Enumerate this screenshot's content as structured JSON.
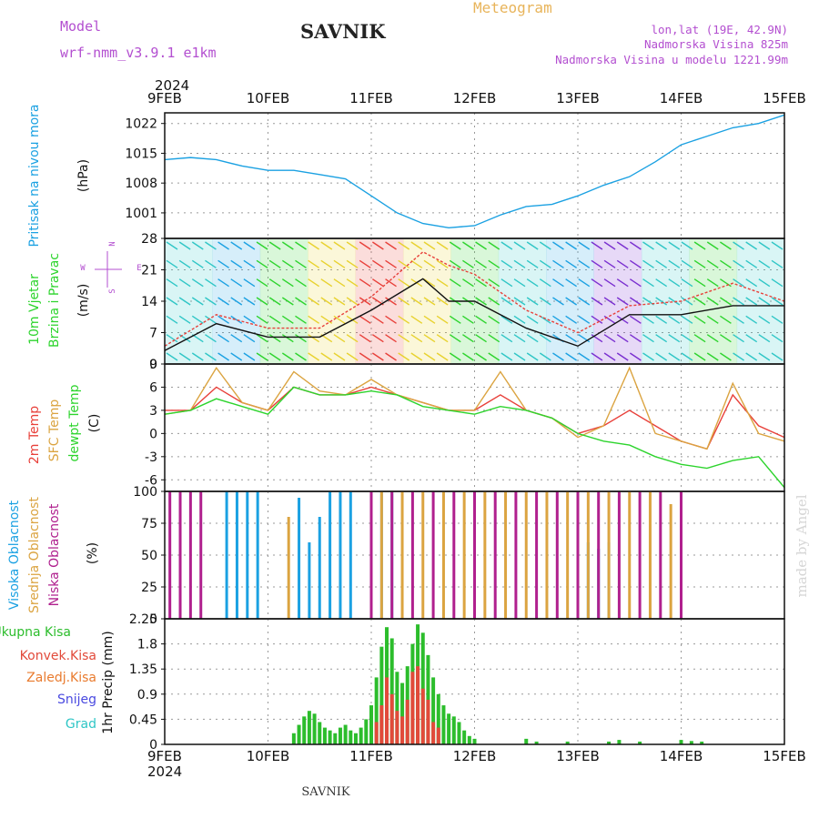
{
  "header": {
    "model_label": "Model",
    "model_name": "wrf-nmm_v3.9.1 e1km",
    "station": "SAVNIK",
    "product": "Meteogram",
    "lonlat": "lon,lat (19E, 42.9N)",
    "elevation": "Nadmorska Visina 825m",
    "model_elevation": "Nadmorska Visina u modelu 1221.99m"
  },
  "footer": {
    "station": "SAVNIK",
    "credit": "made by Angel"
  },
  "colors": {
    "pressure": "#1ba1e2",
    "temp2m": "#e8403a",
    "sfc": "#dba441",
    "dewpt": "#2dd42d",
    "high_cloud": "#1ba1e2",
    "mid_cloud": "#dba441",
    "low_cloud": "#b0208e",
    "rain_total": "#2cbd2c",
    "rain_conv": "#e24a3a",
    "frz": "#e97b2e",
    "snow": "#4a4ae0",
    "graupel": "#2fc6c6",
    "title_purple": "#b34fd0"
  },
  "time_axis": {
    "year": "2024",
    "ticks": [
      "9FEB",
      "10FEB",
      "11FEB",
      "12FEB",
      "13FEB",
      "14FEB",
      "15FEB"
    ]
  },
  "chart_data": [
    {
      "type": "line",
      "id": "pressure",
      "ylabel_name": "Pritisak na nivou mora",
      "ylabel_unit": "(hPa)",
      "ylim": [
        995,
        1024.5
      ],
      "yticks": [
        1001,
        1008,
        1015,
        1022
      ],
      "grid": true,
      "series": [
        {
          "x": [
            0,
            0.25,
            0.5,
            0.75,
            1,
            1.25,
            1.5,
            1.75,
            2,
            2.25,
            2.5,
            2.75,
            3,
            3.25,
            3.5,
            3.75,
            4,
            4.25,
            4.5,
            4.75,
            5,
            5.25,
            5.5,
            5.75,
            6
          ],
          "y": [
            1013.5,
            1014,
            1013.5,
            1012,
            1011,
            1011,
            1010,
            1009,
            1005,
            1001,
            998.5,
            997.5,
            998,
            1000.5,
            1002.5,
            1003,
            1005,
            1007.5,
            1009.5,
            1013,
            1017,
            1019,
            1021,
            1022,
            1024
          ]
        }
      ]
    },
    {
      "type": "line",
      "id": "wind",
      "ylabel_name": "10m Vjetar",
      "ylabel_name2": "Brzina i Pravac",
      "ylabel_unit": "(m/s)",
      "legend_compass": [
        "N",
        "W",
        "E",
        "S"
      ],
      "ylim": [
        0,
        28
      ],
      "yticks": [
        0,
        7,
        14,
        21,
        28
      ],
      "grid": true,
      "series": [
        {
          "x": [
            0,
            0.5,
            1,
            1.5,
            2,
            2.5,
            2.75,
            3,
            3.5,
            4,
            4.5,
            5,
            5.5,
            6
          ],
          "y": [
            3,
            9,
            6,
            6,
            12,
            19,
            14,
            14,
            8,
            4,
            11,
            11,
            13,
            13
          ]
        },
        {
          "x": [
            0,
            0.5,
            1,
            1.5,
            2,
            2.5,
            2.75,
            3,
            3.5,
            4,
            4.5,
            5,
            5.5,
            6
          ],
          "y": [
            4,
            11,
            8,
            8,
            15,
            25,
            22,
            20,
            12,
            7,
            13,
            14,
            18,
            14
          ]
        }
      ]
    },
    {
      "type": "line",
      "id": "temperature",
      "ylabel_names": [
        "2m Temp",
        "SFC Temp",
        "dewpt Temp"
      ],
      "ylabel_unit": "(C)",
      "ylim": [
        -7.5,
        9
      ],
      "yticks": [
        -6,
        -3,
        0,
        3,
        6,
        9
      ],
      "grid": true,
      "series": [
        {
          "name": "2m Temp",
          "x": [
            0,
            0.25,
            0.5,
            0.75,
            1,
            1.25,
            1.5,
            1.75,
            2,
            2.25,
            2.5,
            2.75,
            3,
            3.25,
            3.5,
            3.75,
            4,
            4.25,
            4.5,
            4.75,
            5,
            5.25,
            5.5,
            5.75,
            6
          ],
          "y": [
            3,
            3,
            6,
            4,
            3,
            6,
            5,
            5,
            6,
            5,
            4,
            3,
            3,
            5,
            3,
            2,
            0,
            1,
            3,
            1,
            -1,
            -2,
            5,
            1,
            -0.5
          ]
        },
        {
          "name": "SFC Temp",
          "x": [
            0,
            0.25,
            0.5,
            0.75,
            1,
            1.25,
            1.5,
            1.75,
            2,
            2.25,
            2.5,
            2.75,
            3,
            3.25,
            3.5,
            3.75,
            4,
            4.25,
            4.5,
            4.75,
            5,
            5.25,
            5.5,
            5.75,
            6
          ],
          "y": [
            2.5,
            3,
            8.5,
            4,
            3,
            8,
            5.5,
            5,
            7,
            5,
            4,
            3,
            3,
            8,
            3,
            2,
            -0.5,
            1,
            8.5,
            0,
            -1,
            -2,
            6.5,
            0,
            -1
          ]
        },
        {
          "name": "dewpt Temp",
          "x": [
            0,
            0.25,
            0.5,
            0.75,
            1,
            1.25,
            1.5,
            1.75,
            2,
            2.25,
            2.5,
            2.75,
            3,
            3.25,
            3.5,
            3.75,
            4,
            4.25,
            4.5,
            4.75,
            5,
            5.25,
            5.5,
            5.75,
            6
          ],
          "y": [
            2.5,
            3,
            4.5,
            3.5,
            2.5,
            6,
            5,
            5,
            5.5,
            5,
            3.5,
            3,
            2.5,
            3.5,
            3,
            2,
            0,
            -1,
            -1.5,
            -3,
            -4,
            -4.5,
            -3.5,
            -3,
            -7
          ]
        }
      ]
    },
    {
      "type": "bar",
      "id": "cloud",
      "ylabel_names": [
        "Visoka Oblacnost",
        "Srednja Oblacnost",
        "Niska Oblacnost"
      ],
      "ylabel_unit": "(%)",
      "ylim": [
        0,
        100
      ],
      "yticks": [
        0,
        25,
        50,
        75,
        100
      ],
      "grid": true,
      "series": [
        {
          "name": "Visoka Oblacnost",
          "x": [
            0.6,
            0.7,
            0.8,
            0.9,
            1.3,
            1.4,
            1.5,
            1.6,
            1.7,
            1.8,
            2.0,
            2.1,
            2.2,
            4.0,
            4.1,
            4.2,
            4.3
          ],
          "y": [
            100,
            100,
            100,
            100,
            95,
            60,
            80,
            100,
            100,
            100,
            100,
            100,
            100,
            50,
            60,
            55,
            60
          ]
        },
        {
          "name": "Srednja Oblacnost",
          "x": [
            1.2,
            2.1,
            2.3,
            2.5,
            2.7,
            2.9,
            3.1,
            3.3,
            3.5,
            3.7,
            3.9,
            4.1,
            4.3,
            4.5,
            4.7,
            4.9
          ],
          "y": [
            80,
            100,
            100,
            100,
            100,
            100,
            100,
            100,
            100,
            100,
            100,
            100,
            100,
            100,
            100,
            90
          ]
        },
        {
          "name": "Niska Oblacnost",
          "x": [
            0.05,
            0.15,
            0.25,
            0.35,
            2.0,
            2.2,
            2.4,
            2.6,
            2.8,
            3.0,
            3.2,
            3.4,
            3.6,
            3.8,
            4.0,
            4.2,
            4.4,
            4.6,
            4.8,
            5.0
          ],
          "y": [
            100,
            100,
            100,
            100,
            100,
            100,
            100,
            100,
            100,
            100,
            100,
            100,
            100,
            100,
            100,
            100,
            100,
            100,
            100,
            100
          ]
        }
      ]
    },
    {
      "type": "bar",
      "id": "precip",
      "ylabel_name": "1hr Precip (mm)",
      "legend": [
        "Ukupna Kisa",
        "Konvek.Kisa",
        "Zaledj.Kisa",
        "Snijeg",
        "Grad"
      ],
      "ylim": [
        0,
        2.25
      ],
      "yticks": [
        0,
        0.45,
        0.9,
        1.35,
        1.8,
        2.25
      ],
      "grid": true,
      "series": [
        {
          "name": "Ukupna Kisa",
          "x": [
            1.25,
            1.3,
            1.35,
            1.4,
            1.45,
            1.5,
            1.55,
            1.6,
            1.65,
            1.7,
            1.75,
            1.8,
            1.85,
            1.9,
            1.95,
            2.0,
            2.05,
            2.1,
            2.15,
            2.2,
            2.25,
            2.3,
            2.35,
            2.4,
            2.45,
            2.5,
            2.55,
            2.6,
            2.65,
            2.7,
            2.75,
            2.8,
            2.85,
            2.9,
            2.95,
            3.0,
            3.5,
            3.6,
            3.9,
            4.3,
            4.4,
            4.6,
            5.0,
            5.1,
            5.2
          ],
          "y": [
            0.2,
            0.35,
            0.5,
            0.6,
            0.55,
            0.4,
            0.3,
            0.25,
            0.2,
            0.3,
            0.35,
            0.25,
            0.2,
            0.3,
            0.45,
            0.7,
            1.2,
            1.75,
            2.1,
            1.9,
            1.3,
            1.1,
            1.4,
            1.8,
            2.15,
            2.0,
            1.6,
            1.2,
            0.9,
            0.7,
            0.55,
            0.5,
            0.4,
            0.25,
            0.15,
            0.1,
            0.1,
            0.05,
            0.05,
            0.05,
            0.08,
            0.05,
            0.08,
            0.06,
            0.05
          ]
        },
        {
          "name": "Konvek.Kisa",
          "x": [
            2.05,
            2.1,
            2.15,
            2.2,
            2.25,
            2.3,
            2.35,
            2.4,
            2.45,
            2.5,
            2.55,
            2.6,
            2.65
          ],
          "y": [
            0.4,
            0.7,
            1.2,
            0.9,
            0.6,
            0.5,
            0.8,
            1.3,
            1.4,
            1.0,
            0.8,
            0.4,
            0.3
          ]
        }
      ]
    }
  ]
}
